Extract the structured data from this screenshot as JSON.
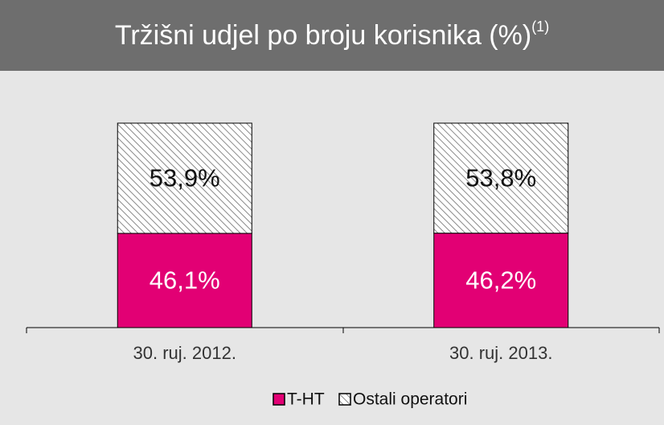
{
  "chart_data": {
    "type": "stacked_bar",
    "title": "Tržišni udjel po broju korisnika (%)",
    "title_superscript": "(1)",
    "categories": [
      "30. ruj. 2012.",
      "30. ruj. 2013."
    ],
    "series": [
      {
        "name": "T-HT",
        "color": "#e20074",
        "values": [
          46.1,
          46.2
        ],
        "value_labels": [
          "46,1%",
          "46,2%"
        ]
      },
      {
        "name": "Ostali operatori",
        "color": "#808080",
        "hatch": true,
        "values": [
          53.9,
          53.8
        ],
        "value_labels": [
          "53,9%",
          "53,8%"
        ]
      }
    ],
    "ylim": [
      0,
      100
    ],
    "legend": "bottom"
  }
}
